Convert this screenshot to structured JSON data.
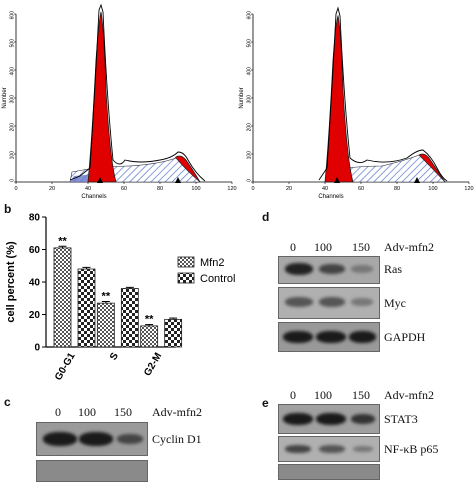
{
  "flow_panels": [
    {
      "y_label": "Number",
      "x_label": "Channels",
      "y_ticks": [
        "0",
        "100",
        "200",
        "300",
        "400",
        "500",
        "600"
      ],
      "x_ticks": [
        "0",
        "20",
        "40",
        "60",
        "80",
        "100",
        "120"
      ]
    },
    {
      "y_label": "Number",
      "x_label": "Channels",
      "y_ticks": [
        "0",
        "100",
        "200",
        "300",
        "400",
        "500",
        "600"
      ],
      "x_ticks": [
        "0",
        "20",
        "40",
        "60",
        "80",
        "100",
        "120"
      ]
    }
  ],
  "panel_b": {
    "letter": "b"
  },
  "panel_c": {
    "letter": "c",
    "doses": [
      "0",
      "100",
      "150"
    ],
    "treatment": "Adv-mfn2",
    "bands": [
      "Cyclin D1"
    ]
  },
  "panel_d": {
    "letter": "d",
    "doses": [
      "0",
      "100",
      "150"
    ],
    "treatment": "Adv-mfn2",
    "bands": [
      "Ras",
      "Myc",
      "GAPDH"
    ]
  },
  "panel_e": {
    "letter": "e",
    "doses": [
      "0",
      "100",
      "150"
    ],
    "treatment": "Adv-mfn2",
    "bands": [
      "STAT3",
      "NF-κB p65"
    ]
  },
  "colors": {
    "peak": "#e00000",
    "hatch": "#5577cc",
    "mfn2": "#666666",
    "control": "#333333"
  },
  "chart_data": {
    "type": "bar",
    "ylabel": "cell percent (%)",
    "categories": [
      "G0-G1",
      "S",
      "G2-M"
    ],
    "ylim": [
      0,
      80
    ],
    "yticks": [
      "0",
      "20",
      "40",
      "60",
      "80"
    ],
    "legend_position": "top-right",
    "series": [
      {
        "name": "Mfn2",
        "values": [
          61,
          27,
          13
        ],
        "errors": [
          1,
          1,
          0.8
        ]
      },
      {
        "name": "Control",
        "values": [
          48,
          36,
          17
        ],
        "errors": [
          1,
          0.7,
          0.8
        ]
      }
    ],
    "annotations": [
      "**",
      "**",
      "**"
    ]
  }
}
